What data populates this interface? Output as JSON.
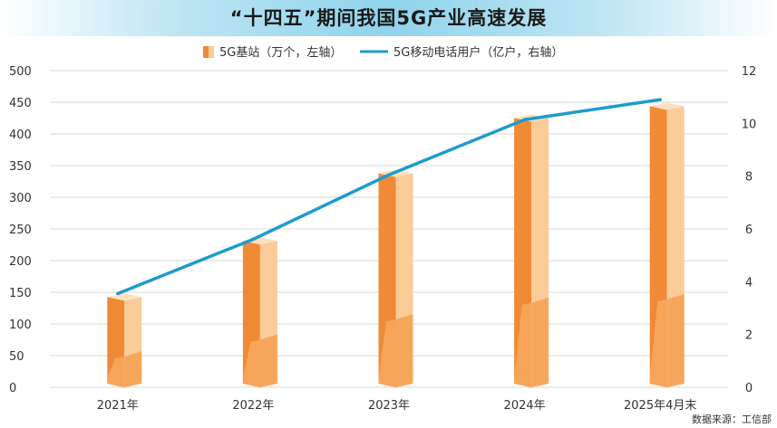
{
  "chart_data": {
    "type": "bar",
    "title": "“十四五”期间我国5G产业高速发展",
    "categories": [
      "2021年",
      "2022年",
      "2023年",
      "2024年",
      "2025年4月末"
    ],
    "series": [
      {
        "name": "5G基站（万个，左轴）",
        "type": "bar",
        "axis": "left",
        "values": [
          142.5,
          231.2,
          337.7,
          425.1,
          443.7
        ]
      },
      {
        "name": "5G移动电话用户（亿户，右轴）",
        "type": "line",
        "axis": "right",
        "values": [
          3.55,
          5.61,
          8.05,
          10.14,
          10.9
        ]
      }
    ],
    "y_left": {
      "range": [
        0,
        500
      ],
      "ticks": [
        "0",
        "50",
        "100",
        "150",
        "200",
        "250",
        "300",
        "350",
        "400",
        "450",
        "500"
      ]
    },
    "y_right": {
      "range": [
        0,
        12
      ],
      "ticks": [
        "0",
        "2",
        "4",
        "6",
        "8",
        "10",
        "12"
      ]
    },
    "grid": true,
    "legend": "top",
    "colors": {
      "bar_front": "#f08a36",
      "bar_front_light": "#f6a65b",
      "bar_side": "#fbcb98",
      "bar_side_light": "#fde0bf",
      "line": "#1f9bcc",
      "grid": "#d9d9d9"
    }
  },
  "source": "数据来源：工信部"
}
